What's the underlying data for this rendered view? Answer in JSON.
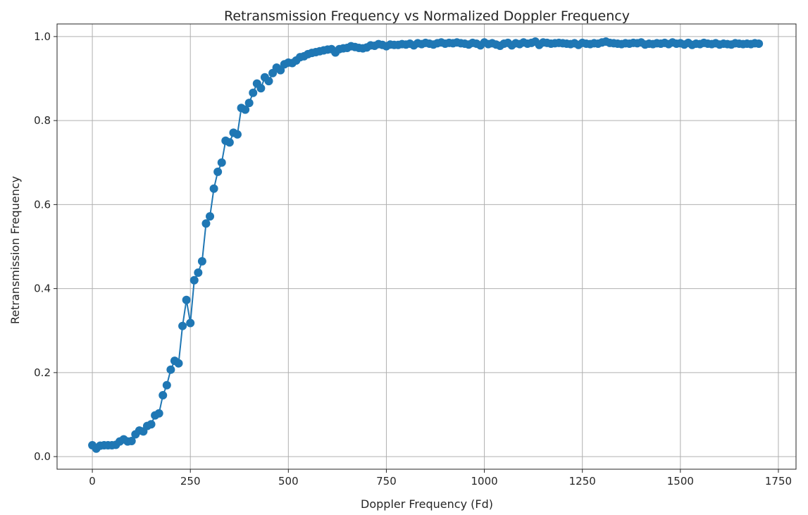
{
  "chart_data": {
    "type": "line",
    "title": "Retransmission Frequency vs Normalized Doppler Frequency",
    "xlabel": "Doppler Frequency (Fd)",
    "ylabel": "Retransmission Frequency",
    "xlim": [
      -90,
      1795
    ],
    "ylim": [
      -0.03,
      1.03
    ],
    "xticks": [
      0,
      250,
      500,
      750,
      1000,
      1250,
      1500,
      1750
    ],
    "yticks": [
      0.0,
      0.2,
      0.4,
      0.6,
      0.8,
      1.0
    ],
    "grid": true,
    "line_color": "#1f77b4",
    "marker": "circle",
    "series": [
      {
        "x": [
          0,
          10,
          20,
          30,
          40,
          50,
          60,
          70,
          80,
          90,
          100,
          110,
          120,
          130,
          140,
          150,
          160,
          170,
          180,
          190,
          200,
          210,
          220,
          230,
          240,
          250,
          260,
          270,
          280,
          290,
          300,
          310,
          320,
          330,
          340,
          350,
          360,
          370,
          380,
          390,
          400,
          410,
          420,
          430,
          440,
          450,
          460,
          470,
          480,
          490,
          500,
          510,
          520,
          530,
          540,
          550,
          560,
          570,
          580,
          590,
          600,
          610,
          620,
          630,
          640,
          650,
          660,
          670,
          680,
          690,
          700,
          710,
          720,
          730,
          740,
          750,
          760,
          770,
          780,
          790,
          800,
          810,
          820,
          830,
          840,
          850,
          860,
          870,
          880,
          890,
          900,
          910,
          920,
          930,
          940,
          950,
          960,
          970,
          980,
          990,
          1000,
          1010,
          1020,
          1030,
          1040,
          1050,
          1060,
          1070,
          1080,
          1090,
          1100,
          1110,
          1120,
          1130,
          1140,
          1150,
          1160,
          1170,
          1180,
          1190,
          1200,
          1210,
          1220,
          1230,
          1240,
          1250,
          1260,
          1270,
          1280,
          1290,
          1300,
          1310,
          1320,
          1330,
          1340,
          1350,
          1360,
          1370,
          1380,
          1390,
          1400,
          1410,
          1420,
          1430,
          1440,
          1450,
          1460,
          1470,
          1480,
          1490,
          1500,
          1510,
          1520,
          1530,
          1540,
          1550,
          1560,
          1570,
          1580,
          1590,
          1600,
          1610,
          1620,
          1630,
          1640,
          1650,
          1660,
          1670,
          1680,
          1690,
          1700
        ],
        "y": [
          0.027,
          0.019,
          0.026,
          0.027,
          0.027,
          0.027,
          0.028,
          0.036,
          0.041,
          0.036,
          0.037,
          0.053,
          0.062,
          0.06,
          0.073,
          0.077,
          0.098,
          0.103,
          0.146,
          0.17,
          0.207,
          0.228,
          0.222,
          0.311,
          0.373,
          0.318,
          0.42,
          0.438,
          0.465,
          0.555,
          0.572,
          0.638,
          0.678,
          0.7,
          0.752,
          0.748,
          0.771,
          0.767,
          0.83,
          0.826,
          0.842,
          0.866,
          0.888,
          0.877,
          0.903,
          0.894,
          0.913,
          0.926,
          0.92,
          0.934,
          0.938,
          0.937,
          0.943,
          0.951,
          0.953,
          0.958,
          0.961,
          0.963,
          0.965,
          0.967,
          0.969,
          0.97,
          0.962,
          0.97,
          0.972,
          0.973,
          0.977,
          0.975,
          0.973,
          0.972,
          0.974,
          0.979,
          0.978,
          0.982,
          0.98,
          0.977,
          0.981,
          0.98,
          0.98,
          0.982,
          0.981,
          0.983,
          0.979,
          0.984,
          0.982,
          0.985,
          0.983,
          0.981,
          0.984,
          0.986,
          0.983,
          0.985,
          0.984,
          0.986,
          0.984,
          0.983,
          0.981,
          0.985,
          0.983,
          0.979,
          0.986,
          0.982,
          0.984,
          0.981,
          0.978,
          0.983,
          0.985,
          0.979,
          0.984,
          0.982,
          0.986,
          0.983,
          0.985,
          0.988,
          0.98,
          0.986,
          0.985,
          0.983,
          0.984,
          0.985,
          0.984,
          0.983,
          0.982,
          0.984,
          0.98,
          0.985,
          0.983,
          0.982,
          0.984,
          0.983,
          0.986,
          0.988,
          0.985,
          0.984,
          0.983,
          0.982,
          0.984,
          0.983,
          0.985,
          0.984,
          0.986,
          0.981,
          0.983,
          0.982,
          0.984,
          0.983,
          0.985,
          0.982,
          0.986,
          0.983,
          0.984,
          0.981,
          0.985,
          0.98,
          0.983,
          0.982,
          0.985,
          0.983,
          0.982,
          0.984,
          0.981,
          0.983,
          0.982,
          0.981,
          0.984,
          0.983,
          0.982,
          0.983,
          0.982,
          0.984,
          0.983
        ]
      }
    ]
  }
}
